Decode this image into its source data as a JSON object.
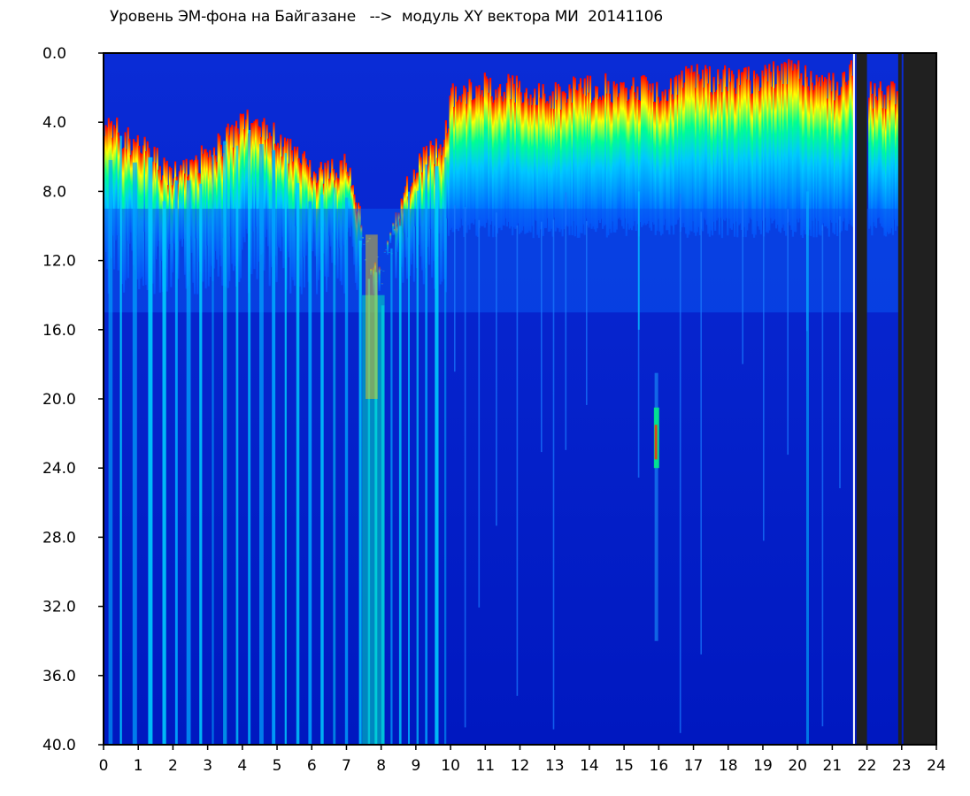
{
  "chart_data": {
    "type": "heatmap",
    "title": "Уровень ЭМ-фона на Байгазане   -->  модуль XY вектора МИ  20141106",
    "xlabel": "",
    "ylabel": "",
    "xlim": [
      0,
      24
    ],
    "ylim": [
      40.0,
      0.0
    ],
    "y_axis_inverted": true,
    "x_ticks": [
      "0",
      "1",
      "2",
      "3",
      "4",
      "5",
      "6",
      "7",
      "8",
      "9",
      "10",
      "11",
      "12",
      "13",
      "14",
      "15",
      "16",
      "17",
      "18",
      "19",
      "20",
      "21",
      "22",
      "23",
      "24"
    ],
    "y_ticks": [
      "0.0",
      "4.0",
      "8.0",
      "12.0",
      "16.0",
      "20.0",
      "24.0",
      "28.0",
      "32.0",
      "36.0",
      "40.0"
    ],
    "colorscale": [
      "#0000c8",
      "#0050ff",
      "#00c8ff",
      "#00ff90",
      "#ffff00",
      "#ff0000"
    ],
    "grid": false,
    "legend": "none",
    "gaps": [
      {
        "x_start": 21.6,
        "x_end": 21.65,
        "value": "no data"
      },
      {
        "x_start": 21.7,
        "x_end": 22.0,
        "value": "no data"
      },
      {
        "x_start": 22.9,
        "x_end": 23.0,
        "value": "no data"
      },
      {
        "x_start": 23.05,
        "x_end": 24.0,
        "value": "no data"
      }
    ],
    "upper_boundary": [
      [
        0,
        4.0
      ],
      [
        1,
        5.5
      ],
      [
        2,
        7.0
      ],
      [
        3,
        6.0
      ],
      [
        4,
        4.0
      ],
      [
        5,
        5.0
      ],
      [
        6,
        7.0
      ],
      [
        7,
        6.5
      ],
      [
        7.5,
        11.0
      ],
      [
        8,
        13.0
      ],
      [
        8.5,
        9.0
      ],
      [
        9,
        6.5
      ],
      [
        9.8,
        5.0
      ],
      [
        10,
        2.5
      ],
      [
        11,
        2.0
      ],
      [
        12,
        2.0
      ],
      [
        13,
        2.5
      ],
      [
        14,
        2.0
      ],
      [
        15,
        2.0
      ],
      [
        16,
        2.0
      ],
      [
        17,
        1.5
      ],
      [
        18,
        1.5
      ],
      [
        19,
        1.5
      ],
      [
        20,
        1.0
      ],
      [
        21,
        2.0
      ],
      [
        21.6,
        1.0
      ],
      [
        22,
        2.5
      ],
      [
        22.9,
        2.5
      ]
    ]
  }
}
